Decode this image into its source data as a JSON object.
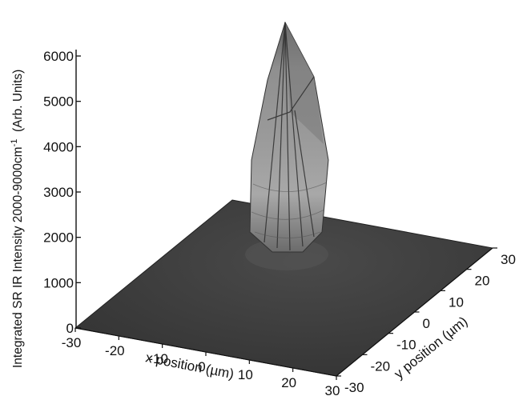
{
  "chart_data": {
    "type": "surface",
    "zlabel": "Integrated SR IR Intensity 2000-9000cm",
    "zlabel_superscript": "-1",
    "zlabel_suffix": "  (Arb. Units)",
    "xlabel": "x position (µm)",
    "ylabel": "y position (µm)",
    "z_ticks": [
      "0",
      "1000",
      "2000",
      "3000",
      "4000",
      "5000",
      "6000"
    ],
    "x_ticks": [
      "-30",
      "-20",
      "-10",
      "0",
      "10",
      "20",
      "30"
    ],
    "y_ticks": [
      "-30",
      "-20",
      "-10",
      "0",
      "10",
      "20",
      "30"
    ],
    "xlim": [
      -30,
      30
    ],
    "ylim": [
      -30,
      30
    ],
    "zlim": [
      0,
      6000
    ],
    "peak": {
      "x": 10,
      "y": 10,
      "z": 6000
    },
    "baseline_z": 0,
    "surface_color": "#3a3a3a",
    "peak_color": "#9a9a9a"
  }
}
